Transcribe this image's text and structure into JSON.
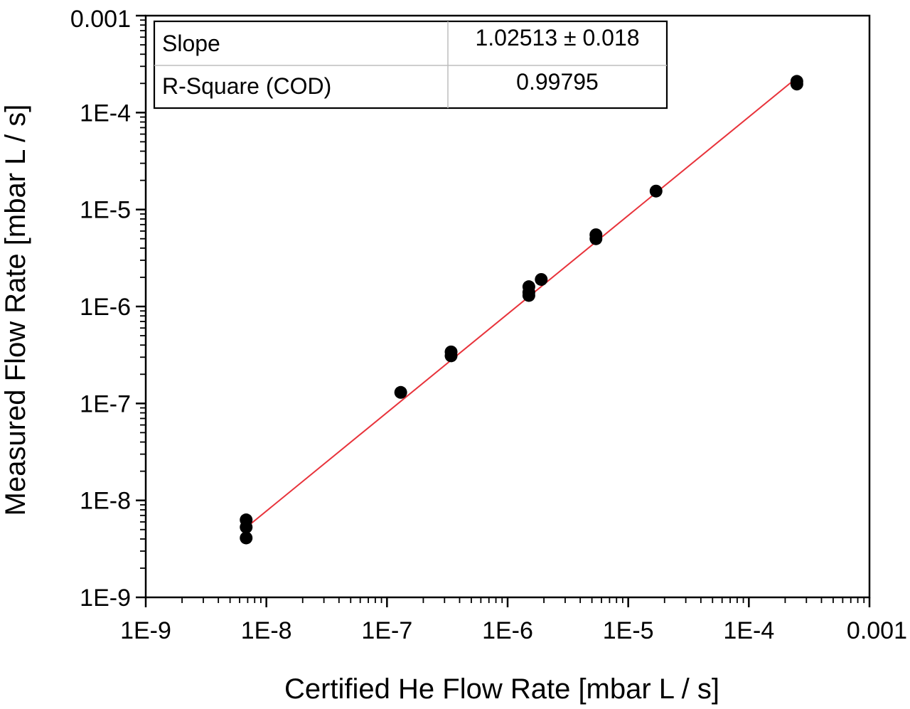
{
  "chart_data": {
    "type": "scatter",
    "xlabel": "Certified He Flow Rate [mbar L / s]",
    "ylabel": "Measured Flow Rate [mbar L / s]",
    "xscale": "log",
    "yscale": "log",
    "xlim": [
      1e-09,
      0.001
    ],
    "ylim": [
      1e-09,
      0.001
    ],
    "x_tick_labels": [
      "1E-9",
      "1E-8",
      "1E-7",
      "1E-6",
      "1E-5",
      "1E-4",
      "0.001"
    ],
    "y_tick_labels": [
      "1E-9",
      "1E-8",
      "1E-7",
      "1E-6",
      "1E-5",
      "1E-4",
      "0.001"
    ],
    "grid": false,
    "points": [
      {
        "x": 6.8e-09,
        "y": 6.3e-09
      },
      {
        "x": 6.8e-09,
        "y": 5.3e-09
      },
      {
        "x": 6.8e-09,
        "y": 4.1e-09
      },
      {
        "x": 1.3e-07,
        "y": 1.3e-07
      },
      {
        "x": 3.4e-07,
        "y": 3.4e-07
      },
      {
        "x": 3.4e-07,
        "y": 3.1e-07
      },
      {
        "x": 1.5e-06,
        "y": 1.6e-06
      },
      {
        "x": 1.5e-06,
        "y": 1.4e-06
      },
      {
        "x": 1.5e-06,
        "y": 1.3e-06
      },
      {
        "x": 1.9e-06,
        "y": 1.9e-06
      },
      {
        "x": 5.4e-06,
        "y": 5.5e-06
      },
      {
        "x": 5.4e-06,
        "y": 5e-06
      },
      {
        "x": 1.7e-05,
        "y": 1.55e-05
      },
      {
        "x": 0.00025,
        "y": 0.00021
      },
      {
        "x": 0.00025,
        "y": 0.000197
      }
    ],
    "fit_line": {
      "x": [
        7e-09,
        0.00025
      ],
      "y": [
        5.4e-09,
        0.000229
      ],
      "color": "#e8333b"
    },
    "stats_table": [
      {
        "label": "Slope",
        "value": "1.02513 ± 0.018"
      },
      {
        "label": "R-Square (COD)",
        "value": "0.99795"
      }
    ],
    "marker_color": "#000000"
  }
}
